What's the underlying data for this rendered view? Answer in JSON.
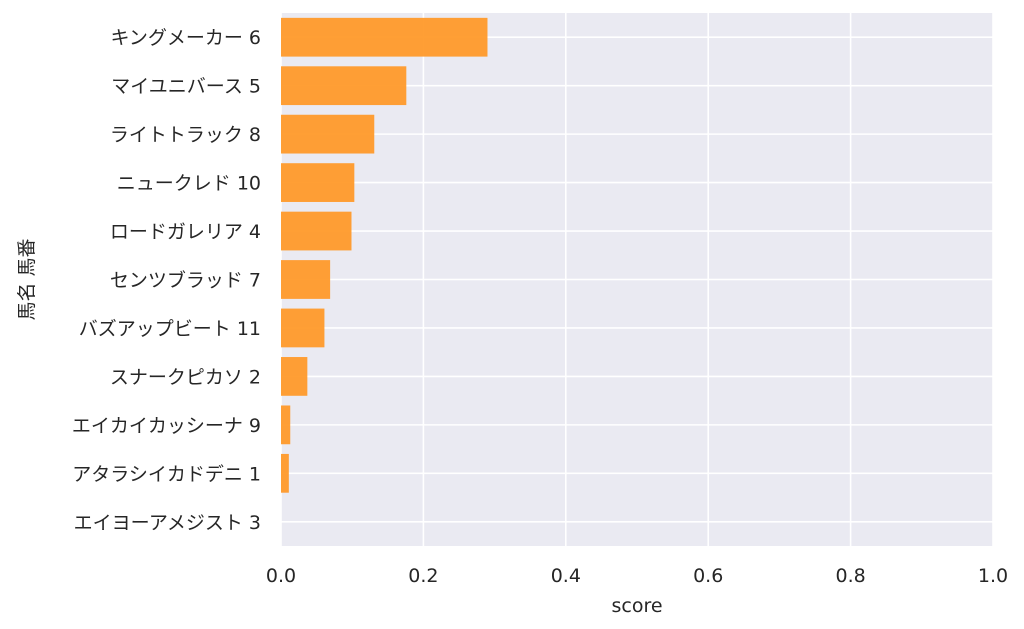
{
  "chart_data": {
    "type": "bar",
    "orientation": "horizontal",
    "title": "",
    "xlabel": "score",
    "ylabel": "馬名 馬番",
    "xlim": [
      0,
      1
    ],
    "xticks": [
      "0.0",
      "0.2",
      "0.4",
      "0.6",
      "0.8",
      "1.0"
    ],
    "grid": true,
    "background_color": "#eaeaf2",
    "bar_color": "#ff9a2a",
    "categories": [
      "キングメーカー 6",
      "マイユニバース 5",
      "ライトトラック 8",
      "ニュークレド 10",
      "ロードガレリア 4",
      "センツブラッド 7",
      "バズアップビート 11",
      "スナークピカソ 2",
      "エイカイカッシーナ 9",
      "アタラシイカドデニ 1",
      "エイヨーアメジスト 3"
    ],
    "values": [
      0.29,
      0.176,
      0.131,
      0.103,
      0.099,
      0.069,
      0.061,
      0.037,
      0.013,
      0.011,
      0.0
    ]
  }
}
